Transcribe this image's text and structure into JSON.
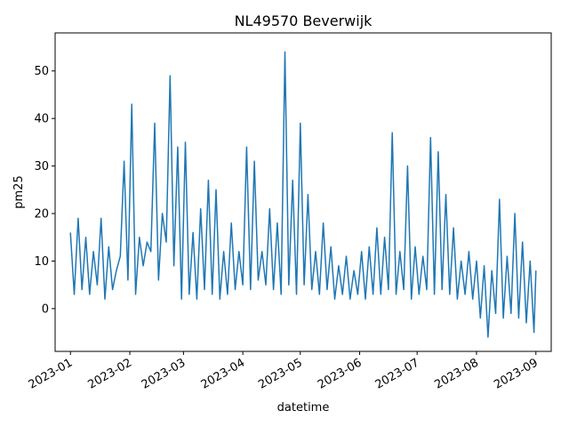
{
  "chart_data": {
    "type": "line",
    "title": "NL49570 Beverwijk",
    "xlabel": "datetime",
    "ylabel": "pm25",
    "xlim": [
      "2022-12-24",
      "2023-09-09"
    ],
    "ylim": [
      -9,
      58
    ],
    "grid": false,
    "legend": "none",
    "x_ticks": [
      "2023-01",
      "2023-02",
      "2023-03",
      "2023-04",
      "2023-05",
      "2023-06",
      "2023-07",
      "2023-08",
      "2023-09"
    ],
    "x_tick_dates": [
      "2023-01-01",
      "2023-02-01",
      "2023-03-01",
      "2023-04-01",
      "2023-05-01",
      "2023-06-01",
      "2023-07-01",
      "2023-08-01",
      "2023-09-01"
    ],
    "y_ticks": [
      "0",
      "10",
      "20",
      "30",
      "40",
      "50"
    ],
    "y_tick_values": [
      0,
      10,
      20,
      30,
      40,
      50
    ],
    "series": [
      {
        "color": "#1f77b4",
        "x": [
          "2023-01-01",
          "2023-01-03",
          "2023-01-05",
          "2023-01-07",
          "2023-01-09",
          "2023-01-11",
          "2023-01-13",
          "2023-01-15",
          "2023-01-17",
          "2023-01-19",
          "2023-01-21",
          "2023-01-23",
          "2023-01-25",
          "2023-01-27",
          "2023-01-29",
          "2023-01-31",
          "2023-02-02",
          "2023-02-04",
          "2023-02-06",
          "2023-02-08",
          "2023-02-10",
          "2023-02-12",
          "2023-02-14",
          "2023-02-16",
          "2023-02-18",
          "2023-02-20",
          "2023-02-22",
          "2023-02-24",
          "2023-02-26",
          "2023-02-28",
          "2023-03-02",
          "2023-03-04",
          "2023-03-06",
          "2023-03-08",
          "2023-03-10",
          "2023-03-12",
          "2023-03-14",
          "2023-03-16",
          "2023-03-18",
          "2023-03-20",
          "2023-03-22",
          "2023-03-24",
          "2023-03-26",
          "2023-03-28",
          "2023-03-30",
          "2023-04-01",
          "2023-04-03",
          "2023-04-05",
          "2023-04-07",
          "2023-04-09",
          "2023-04-11",
          "2023-04-13",
          "2023-04-15",
          "2023-04-17",
          "2023-04-19",
          "2023-04-21",
          "2023-04-23",
          "2023-04-25",
          "2023-04-27",
          "2023-04-29",
          "2023-05-01",
          "2023-05-03",
          "2023-05-05",
          "2023-05-07",
          "2023-05-09",
          "2023-05-11",
          "2023-05-13",
          "2023-05-15",
          "2023-05-17",
          "2023-05-19",
          "2023-05-21",
          "2023-05-23",
          "2023-05-25",
          "2023-05-27",
          "2023-05-29",
          "2023-05-31",
          "2023-06-02",
          "2023-06-04",
          "2023-06-06",
          "2023-06-08",
          "2023-06-10",
          "2023-06-12",
          "2023-06-14",
          "2023-06-16",
          "2023-06-18",
          "2023-06-20",
          "2023-06-22",
          "2023-06-24",
          "2023-06-26",
          "2023-06-28",
          "2023-06-30",
          "2023-07-02",
          "2023-07-04",
          "2023-07-06",
          "2023-07-08",
          "2023-07-10",
          "2023-07-12",
          "2023-07-14",
          "2023-07-16",
          "2023-07-18",
          "2023-07-20",
          "2023-07-22",
          "2023-07-24",
          "2023-07-26",
          "2023-07-28",
          "2023-07-30",
          "2023-08-01",
          "2023-08-03",
          "2023-08-05",
          "2023-08-07",
          "2023-08-09",
          "2023-08-11",
          "2023-08-13",
          "2023-08-15",
          "2023-08-17",
          "2023-08-19",
          "2023-08-21",
          "2023-08-23",
          "2023-08-25",
          "2023-08-27",
          "2023-08-29",
          "2023-08-31",
          "2023-09-01"
        ],
        "y": [
          16,
          3,
          19,
          4,
          15,
          3,
          12,
          5,
          19,
          2,
          13,
          4,
          8,
          11,
          31,
          6,
          43,
          3,
          15,
          9,
          14,
          12,
          39,
          6,
          20,
          14,
          49,
          9,
          34,
          2,
          35,
          3,
          16,
          2,
          21,
          4,
          27,
          3,
          25,
          2,
          12,
          3,
          18,
          4,
          12,
          5,
          34,
          4,
          31,
          6,
          12,
          5,
          21,
          4,
          18,
          3,
          54,
          5,
          27,
          3,
          39,
          5,
          24,
          4,
          12,
          3,
          18,
          4,
          13,
          2,
          9,
          3,
          11,
          2,
          8,
          3,
          12,
          2,
          13,
          3,
          17,
          3,
          15,
          4,
          37,
          3,
          12,
          4,
          30,
          2,
          13,
          3,
          11,
          4,
          36,
          3,
          33,
          4,
          24,
          3,
          17,
          2,
          10,
          3,
          12,
          2,
          10,
          -2,
          9,
          -6,
          8,
          -1,
          23,
          -2,
          11,
          -1,
          20,
          -2,
          14,
          -3,
          10,
          -5,
          8
        ]
      }
    ]
  }
}
